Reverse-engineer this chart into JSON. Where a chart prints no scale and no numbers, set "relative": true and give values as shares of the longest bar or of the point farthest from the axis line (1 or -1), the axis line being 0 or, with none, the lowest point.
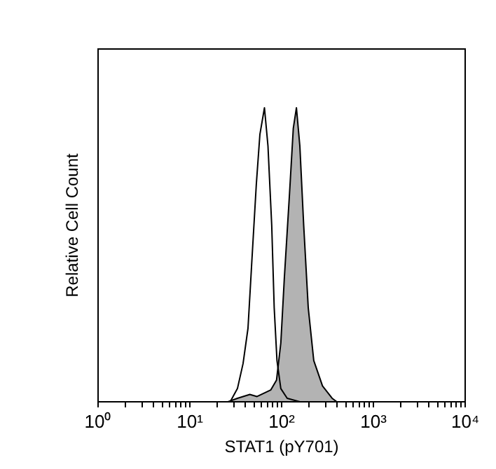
{
  "chart_data": {
    "type": "line",
    "relative": true,
    "xlabel": "STAT1 (pY701)",
    "ylabel": "Relative Cell Count",
    "log": "x",
    "grid": false,
    "legend": false,
    "marker": "none",
    "xlim": [
      1,
      10000
    ],
    "xticks": [
      {
        "value": 1,
        "label": "10⁰"
      },
      {
        "value": 2,
        "label": null
      },
      {
        "value": 3,
        "label": null
      },
      {
        "value": 4,
        "label": null
      },
      {
        "value": 5,
        "label": null
      },
      {
        "value": 6,
        "label": null
      },
      {
        "value": 7,
        "label": null
      },
      {
        "value": 8,
        "label": null
      },
      {
        "value": 9,
        "label": null
      },
      {
        "value": 10,
        "label": "10¹"
      },
      {
        "value": 20,
        "label": null
      },
      {
        "value": 30,
        "label": null
      },
      {
        "value": 40,
        "label": null
      },
      {
        "value": 50,
        "label": null
      },
      {
        "value": 60,
        "label": null
      },
      {
        "value": 70,
        "label": null
      },
      {
        "value": 80,
        "label": null
      },
      {
        "value": 90,
        "label": null
      },
      {
        "value": 100,
        "label": "10²"
      },
      {
        "value": 200,
        "label": null
      },
      {
        "value": 300,
        "label": null
      },
      {
        "value": 400,
        "label": null
      },
      {
        "value": 500,
        "label": null
      },
      {
        "value": 600,
        "label": null
      },
      {
        "value": 700,
        "label": null
      },
      {
        "value": 800,
        "label": null
      },
      {
        "value": 900,
        "label": null
      },
      {
        "value": 1000,
        "label": "10³"
      },
      {
        "value": 2000,
        "label": null
      },
      {
        "value": 3000,
        "label": null
      },
      {
        "value": 4000,
        "label": null
      },
      {
        "value": 5000,
        "label": null
      },
      {
        "value": 6000,
        "label": null
      },
      {
        "value": 7000,
        "label": null
      },
      {
        "value": 8000,
        "label": null
      },
      {
        "value": 9000,
        "label": null
      },
      {
        "value": 10000,
        "label": "10⁴"
      }
    ],
    "series": [
      {
        "type": "area",
        "color": "#b3b3b3",
        "x": [
          26,
          33,
          45,
          54,
          76,
          88,
          98,
          107,
          122,
          134,
          145,
          158,
          174,
          195,
          224,
          279,
          355,
          400
        ],
        "values": [
          0,
          0.012,
          0.025,
          0.018,
          0.04,
          0.074,
          0.2,
          0.42,
          0.71,
          0.93,
          1,
          0.87,
          0.6,
          0.32,
          0.14,
          0.054,
          0.012,
          0
        ]
      },
      {
        "type": "line",
        "color": "#000000",
        "x": [
          27.5,
          33,
          38,
          43,
          47,
          53,
          58,
          65,
          71,
          78,
          83,
          89,
          98,
          115,
          158
        ],
        "values": [
          0,
          0.045,
          0.13,
          0.25,
          0.46,
          0.74,
          0.91,
          1,
          0.87,
          0.6,
          0.32,
          0.14,
          0.045,
          0.012,
          0
        ]
      }
    ]
  }
}
